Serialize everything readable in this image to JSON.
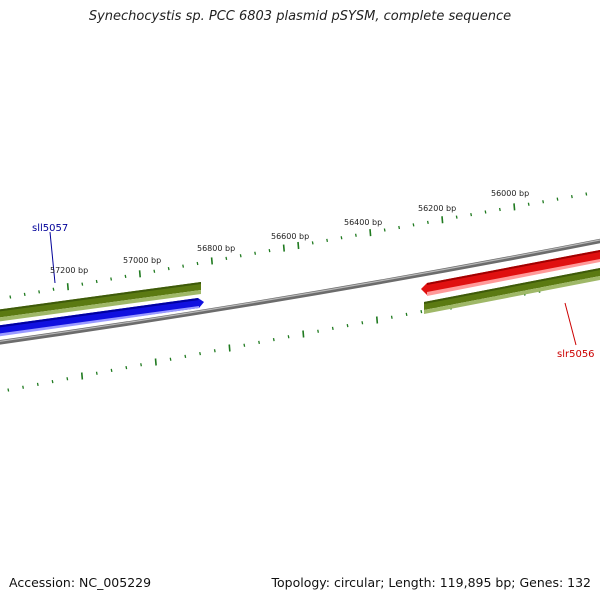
{
  "title": "Synechocystis sp. PCC 6803 plasmid pSYSM, complete sequence",
  "footer": {
    "accession": "Accession: NC_005229",
    "stats": "Topology: circular; Length: 119,895 bp; Genes: 132"
  },
  "colors": {
    "backbone": "#7a7a7a",
    "tick": "#1f7a1f",
    "cds": "#5a7a1a",
    "forward_gene": "#e01010",
    "reverse_gene": "#1010e0",
    "forward_label": "#cc0000",
    "reverse_label": "#000099"
  },
  "ticks": [
    {
      "label": "56000 bp"
    },
    {
      "label": "56200 bp"
    },
    {
      "label": "56400 bp"
    },
    {
      "label": "56600 bp"
    },
    {
      "label": "56800 bp"
    },
    {
      "label": "57000 bp"
    },
    {
      "label": "57200 bp"
    }
  ],
  "genes": [
    {
      "name": "slr5056",
      "strand": "forward"
    },
    {
      "name": "sll5057",
      "strand": "reverse"
    }
  ]
}
